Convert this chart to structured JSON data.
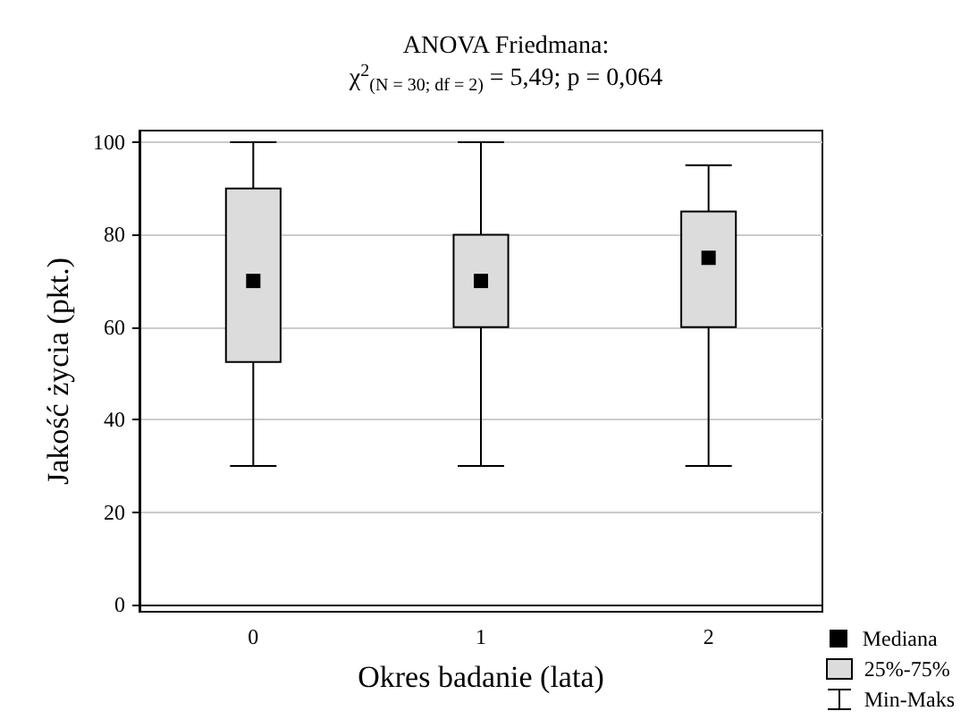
{
  "chart_data": {
    "type": "box",
    "title": "ANOVA Friedmana:",
    "subtitle": "χ$^{2}$$_{(N = 30; df = 2)}$ = 5,49; p = 0,064",
    "xlabel": "Okres badanie (lata)",
    "ylabel": "Jakość życia (pkt.)",
    "categories": [
      "0",
      "1",
      "2"
    ],
    "series": [
      {
        "name": "25%-75%",
        "color": "#dcdcdc",
        "boxes": [
          {
            "low": 30,
            "q1": 52.5,
            "median": 70,
            "q3": 90,
            "high": 100
          },
          {
            "low": 30,
            "q1": 60,
            "median": 70,
            "q3": 80,
            "high": 100
          },
          {
            "low": 30,
            "q1": 60,
            "median": 75,
            "q3": 85,
            "high": 95
          }
        ]
      }
    ],
    "annotations": [
      "Mediana",
      "Min-Maks"
    ],
    "ylim": [
      -1.5,
      102.5
    ],
    "yticks": [
      0,
      20,
      40,
      60,
      80,
      100
    ],
    "grid": "y",
    "legend": "bottom right",
    "marker": "square"
  }
}
